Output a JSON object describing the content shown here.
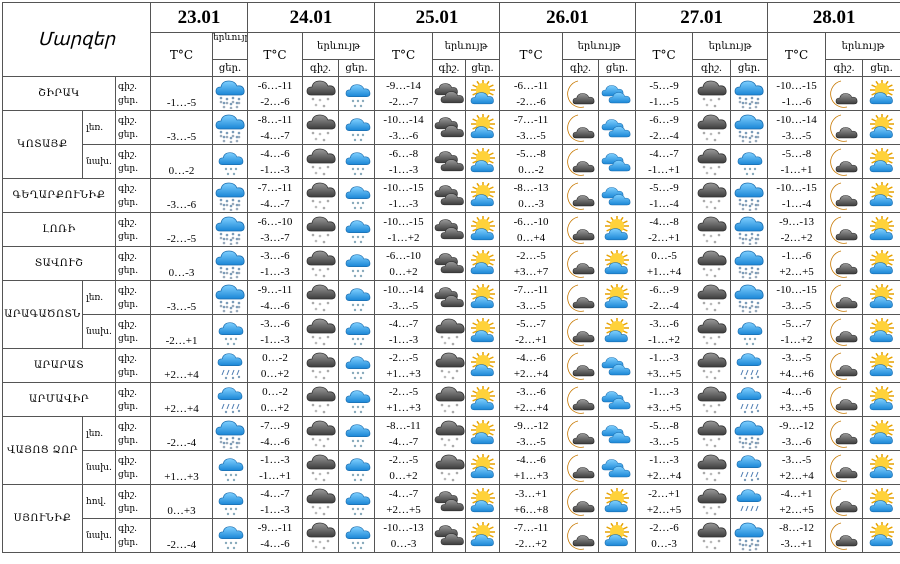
{
  "header": {
    "regions_label": "Մարզեր",
    "temp_label": "T°C",
    "phenomenon_label": "երևույթ",
    "night_label": "գիշ.",
    "day_label": "ցեր.",
    "dates": [
      "23.01",
      "24.01",
      "25.01",
      "26.01",
      "27.01",
      "28.01"
    ]
  },
  "regions": [
    {
      "name": "ՇԻՐԱԿ",
      "subs": [
        {
          "sub": "",
          "d23": {
            "t": "-1…-5",
            "icon": "heavy-snow"
          },
          "days": [
            [
              "-6…-11",
              "-2…-6",
              "dark-snow",
              "light-snow"
            ],
            [
              "-9…-14",
              "-2…-7",
              "dark-cloud",
              "sun-cloud"
            ],
            [
              "-6…-11",
              "-2…-6",
              "moon-cloud",
              "blue-clouds"
            ],
            [
              "-5…-9",
              "-1…-5",
              "dark-snow",
              "heavy-snow"
            ],
            [
              "-10…-15",
              "-1…-6",
              "moon-cloud",
              "sun-cloud"
            ]
          ]
        }
      ]
    },
    {
      "name": "ԿՈՏԱՅՔ",
      "subs": [
        {
          "sub": "լեռ.",
          "d23": {
            "t": "-3…-5",
            "icon": "heavy-snow"
          },
          "days": [
            [
              "-8…-11",
              "-4…-7",
              "dark-snow",
              "light-snow"
            ],
            [
              "-10…-14",
              "-3…-6",
              "dark-cloud",
              "sun-cloud"
            ],
            [
              "-7…-11",
              "-3…-5",
              "moon-cloud",
              "blue-clouds"
            ],
            [
              "-6…-9",
              "-2…-4",
              "dark-snow",
              "heavy-snow"
            ],
            [
              "-10…-14",
              "-3…-5",
              "moon-cloud",
              "sun-cloud"
            ]
          ]
        },
        {
          "sub": "նախ.",
          "d23": {
            "t": "0…-2",
            "icon": "light-snow"
          },
          "days": [
            [
              "-4…-6",
              "-1…-3",
              "dark-snow",
              "light-snow"
            ],
            [
              "-6…-8",
              "-1…-3",
              "dark-cloud",
              "sun-cloud"
            ],
            [
              "-5…-8",
              "0…-2",
              "moon-cloud",
              "blue-clouds"
            ],
            [
              "-4…-7",
              "-1…+1",
              "dark-snow",
              "light-snow"
            ],
            [
              "-5…-8",
              "-1…+1",
              "moon-cloud",
              "sun-cloud"
            ]
          ]
        }
      ]
    },
    {
      "name": "ԳԵՂԱՐՔՈՒՆԻՔ",
      "subs": [
        {
          "sub": "",
          "d23": {
            "t": "-3…-6",
            "icon": "heavy-snow"
          },
          "days": [
            [
              "-7…-11",
              "-4…-7",
              "dark-snow",
              "light-snow"
            ],
            [
              "-10…-15",
              "-1…-3",
              "dark-cloud",
              "sun-cloud"
            ],
            [
              "-8…-13",
              "0…-3",
              "moon-cloud",
              "blue-clouds"
            ],
            [
              "-5…-9",
              "-1…-4",
              "dark-snow",
              "heavy-snow"
            ],
            [
              "-10…-15",
              "-1…-4",
              "moon-cloud",
              "sun-cloud"
            ]
          ]
        }
      ]
    },
    {
      "name": "ԼՈՌԻ",
      "subs": [
        {
          "sub": "",
          "d23": {
            "t": "-2…-5",
            "icon": "heavy-snow"
          },
          "days": [
            [
              "-6…-10",
              "-3…-7",
              "dark-snow",
              "light-snow"
            ],
            [
              "-10…-15",
              "-1…+2",
              "dark-cloud",
              "sun-cloud"
            ],
            [
              "-6…-10",
              "0…+4",
              "moon-cloud",
              "sun-cloud"
            ],
            [
              "-4…-8",
              "-2…+1",
              "dark-snow",
              "heavy-snow"
            ],
            [
              "-9…-13",
              "-2…+2",
              "moon-cloud",
              "sun-cloud"
            ]
          ]
        }
      ]
    },
    {
      "name": "ՏԱՎՈՒՇ",
      "subs": [
        {
          "sub": "",
          "d23": {
            "t": "0…-3",
            "icon": "heavy-snow"
          },
          "days": [
            [
              "-3…-6",
              "-1…-3",
              "dark-snow",
              "light-snow"
            ],
            [
              "-6…-10",
              "0…+2",
              "dark-cloud",
              "sun-cloud"
            ],
            [
              "-2…-5",
              "+3…+7",
              "moon-cloud",
              "sun-cloud"
            ],
            [
              "0…-5",
              "+1…+4",
              "dark-snow",
              "heavy-snow"
            ],
            [
              "-1…-6",
              "+2…+5",
              "moon-cloud",
              "sun-cloud"
            ]
          ]
        }
      ]
    },
    {
      "name": "ԱՐԱԳԱԾՈՏՆ",
      "subs": [
        {
          "sub": "լեռ.",
          "d23": {
            "t": "-3…-5",
            "icon": "heavy-snow"
          },
          "days": [
            [
              "-9…-11",
              "-4…-6",
              "dark-snow",
              "light-snow"
            ],
            [
              "-10…-14",
              "-3…-5",
              "dark-cloud",
              "sun-cloud"
            ],
            [
              "-7…-11",
              "-3…-5",
              "moon-cloud",
              "sun-cloud"
            ],
            [
              "-6…-9",
              "-2…-4",
              "dark-snow",
              "heavy-snow"
            ],
            [
              "-10…-15",
              "-3…-5",
              "moon-cloud",
              "sun-cloud"
            ]
          ]
        },
        {
          "sub": "նախ.",
          "d23": {
            "t": "-2…+1",
            "icon": "light-snow"
          },
          "days": [
            [
              "-3…-6",
              "-1…-3",
              "dark-snow",
              "light-snow"
            ],
            [
              "-4…-7",
              "-1…-3",
              "dark-snow",
              "sun-cloud"
            ],
            [
              "-5…-7",
              "-2…+1",
              "moon-cloud",
              "sun-cloud"
            ],
            [
              "-3…-6",
              "-1…+2",
              "dark-snow",
              "light-snow"
            ],
            [
              "-5…-7",
              "-1…+2",
              "moon-cloud",
              "sun-cloud"
            ]
          ]
        }
      ]
    },
    {
      "name": "ԱՐԱՐԱՏ",
      "subs": [
        {
          "sub": "",
          "d23": {
            "t": "+2…+4",
            "icon": "rain-snow"
          },
          "days": [
            [
              "0…-2",
              "0…+2",
              "dark-snow",
              "light-snow"
            ],
            [
              "-2…-5",
              "+1…+3",
              "dark-snow",
              "sun-cloud"
            ],
            [
              "-4…-6",
              "+2…+4",
              "moon-cloud",
              "blue-clouds"
            ],
            [
              "-1…-3",
              "+3…+5",
              "dark-snow",
              "rain-snow"
            ],
            [
              "-3…-5",
              "+4…+6",
              "moon-cloud",
              "sun-cloud"
            ]
          ]
        }
      ]
    },
    {
      "name": "ԱՐՄԱՎԻՐ",
      "subs": [
        {
          "sub": "",
          "d23": {
            "t": "+2…+4",
            "icon": "rain-snow"
          },
          "days": [
            [
              "0…-2",
              "0…+2",
              "dark-snow",
              "light-snow"
            ],
            [
              "-2…-5",
              "+1…+3",
              "dark-snow",
              "sun-cloud"
            ],
            [
              "-3…-6",
              "+2…+4",
              "moon-cloud",
              "blue-clouds"
            ],
            [
              "-1…-3",
              "+3…+5",
              "dark-snow",
              "rain-snow"
            ],
            [
              "-4…-6",
              "+3…+5",
              "moon-cloud",
              "sun-cloud"
            ]
          ]
        }
      ]
    },
    {
      "name": "ՎԱՅՈՑ ՁՈՐ",
      "subs": [
        {
          "sub": "լեռ.",
          "d23": {
            "t": "-2…-4",
            "icon": "heavy-snow"
          },
          "days": [
            [
              "-7…-9",
              "-4…-6",
              "dark-snow",
              "light-snow"
            ],
            [
              "-8…-11",
              "-4…-7",
              "dark-snow",
              "sun-cloud"
            ],
            [
              "-9…-12",
              "-3…-5",
              "moon-cloud",
              "blue-clouds"
            ],
            [
              "-5…-8",
              "-3…-5",
              "dark-snow",
              "heavy-snow"
            ],
            [
              "-9…-12",
              "-3…-6",
              "moon-cloud",
              "sun-cloud"
            ]
          ]
        },
        {
          "sub": "նախ.",
          "d23": {
            "t": "+1…+3",
            "icon": "light-snow"
          },
          "days": [
            [
              "-1…-3",
              "-1…+1",
              "dark-snow",
              "light-snow"
            ],
            [
              "-2…-5",
              "0…+2",
              "dark-snow",
              "sun-cloud"
            ],
            [
              "-4…-6",
              "+1…+3",
              "moon-cloud",
              "blue-clouds"
            ],
            [
              "-1…-3",
              "+2…+4",
              "dark-snow",
              "rain-snow"
            ],
            [
              "-3…-5",
              "+2…+4",
              "moon-cloud",
              "sun-cloud"
            ]
          ]
        }
      ]
    },
    {
      "name": "ՍՅՈՒՆԻՔ",
      "subs": [
        {
          "sub": "հով.",
          "d23": {
            "t": "0…+3",
            "icon": "light-snow"
          },
          "days": [
            [
              "-4…-7",
              "-1…-3",
              "dark-snow",
              "light-snow"
            ],
            [
              "-4…-7",
              "+2…+5",
              "dark-cloud",
              "sun-cloud"
            ],
            [
              "-3…+1",
              "+6…+8",
              "moon-cloud",
              "sun-cloud"
            ],
            [
              "-2…+1",
              "+2…+5",
              "dark-snow",
              "rain"
            ],
            [
              "-4…+1",
              "+2…+5",
              "moon-cloud",
              "sun-cloud"
            ]
          ]
        },
        {
          "sub": "նախ.",
          "d23": {
            "t": "-2…-4",
            "icon": "light-snow"
          },
          "days": [
            [
              "-9…-11",
              "-4…-6",
              "dark-snow",
              "light-snow"
            ],
            [
              "-10…-13",
              "0…-3",
              "dark-cloud",
              "sun-cloud"
            ],
            [
              "-7…-11",
              "-2…+2",
              "moon-cloud",
              "sun-cloud"
            ],
            [
              "-2…-6",
              "0…-3",
              "dark-snow",
              "heavy-snow"
            ],
            [
              "-8…-12",
              "-3…+1",
              "moon-cloud",
              "sun-cloud"
            ]
          ]
        }
      ]
    }
  ]
}
